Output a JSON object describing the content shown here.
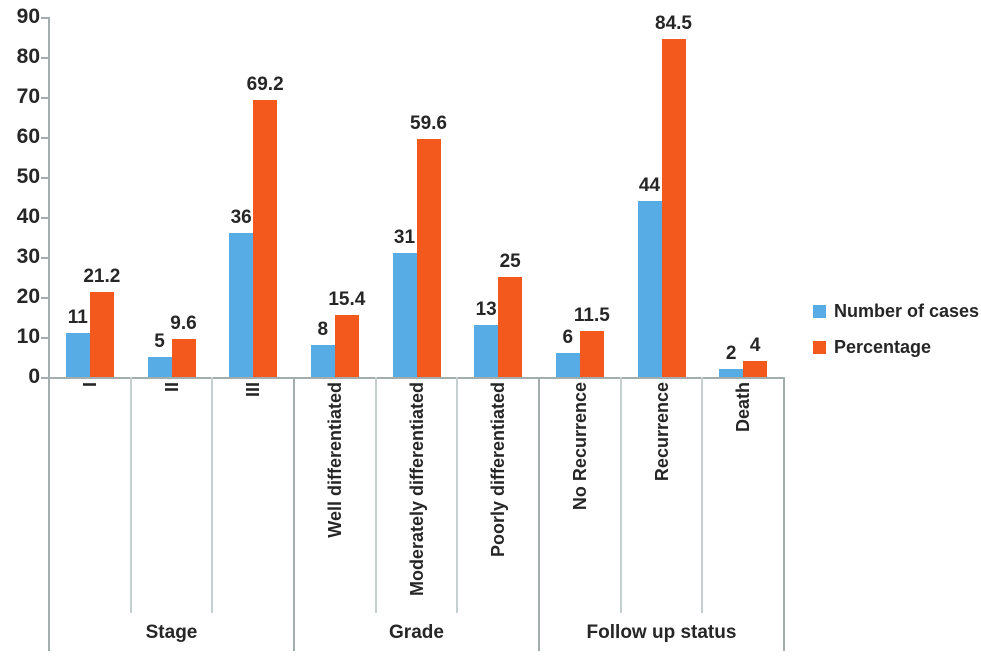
{
  "chart_data": {
    "type": "bar",
    "title": "",
    "xlabel": "",
    "ylabel": "",
    "ylim": [
      0,
      90
    ],
    "yticks": [
      0,
      10,
      20,
      30,
      40,
      50,
      60,
      70,
      80,
      90
    ],
    "grid": false,
    "legend_position": "right",
    "groups": [
      {
        "label": "Stage",
        "categories": [
          "I",
          "II",
          "III"
        ]
      },
      {
        "label": "Grade",
        "categories": [
          "Well differentiated",
          "Moderately differentiated",
          "Poorly differentiated"
        ]
      },
      {
        "label": "Follow up status",
        "categories": [
          "No Recurrence",
          "Recurrence",
          "Death"
        ]
      }
    ],
    "categories": [
      "I",
      "II",
      "III",
      "Well differentiated",
      "Moderately differentiated",
      "Poorly differentiated",
      "No Recurrence",
      "Recurrence",
      "Death"
    ],
    "series": [
      {
        "name": "Number of cases",
        "color": "#58ace6",
        "values": [
          11,
          5,
          36,
          8,
          31,
          13,
          6,
          44,
          2
        ]
      },
      {
        "name": "Percentage",
        "color": "#f3581d",
        "values": [
          21.2,
          9.6,
          69.2,
          15.4,
          59.6,
          25,
          11.5,
          84.5,
          4
        ]
      }
    ],
    "colors": {
      "number_of_cases": "#58ace6",
      "percentage": "#f3581d",
      "axis_line": "#a4adae",
      "separator_line": "#c7cecf",
      "text": "#262626"
    }
  }
}
